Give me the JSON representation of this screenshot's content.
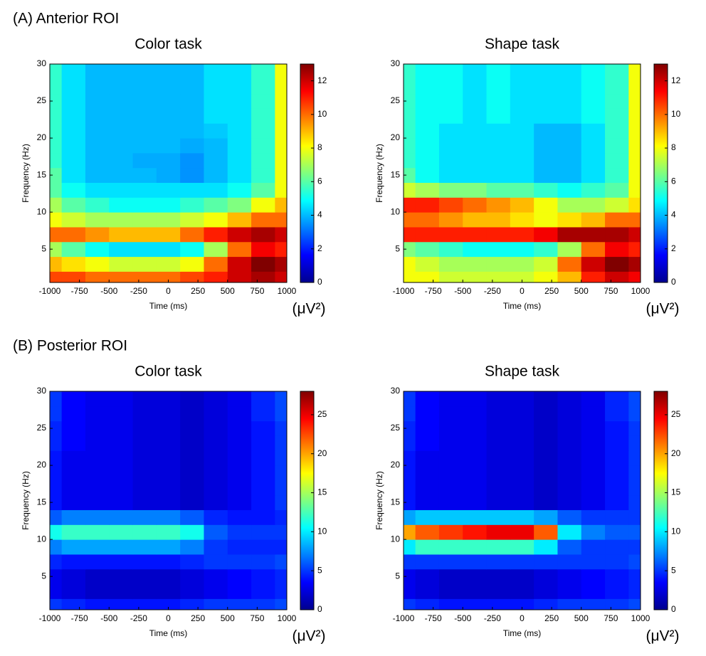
{
  "panel_labels": [
    "(A) Anterior ROI",
    "(B) Posterior ROI"
  ],
  "chart_data": [
    {
      "type": "heatmap",
      "title": "Color task",
      "xlabel": "Time (ms)",
      "ylabel": "Frequency (Hz)",
      "colorbar_label": "(μV²)",
      "colormap": "jet",
      "x": [
        -1000,
        -800,
        -600,
        -400,
        -200,
        0,
        200,
        400,
        600,
        800,
        1000
      ],
      "y": [
        1,
        3,
        5,
        7,
        9,
        11,
        13,
        15,
        17,
        19,
        21,
        23,
        25,
        27,
        29
      ],
      "values": [
        [
          10.5,
          10.5,
          10,
          10,
          10,
          10,
          10.5,
          11,
          12,
          12.5,
          12
        ],
        [
          9,
          8.5,
          8,
          7.5,
          7.5,
          7.5,
          8,
          10,
          12,
          13,
          12.5
        ],
        [
          7,
          6,
          5,
          4.5,
          4.5,
          4.5,
          5,
          7,
          10,
          11.5,
          11
        ],
        [
          10,
          10,
          9.5,
          9,
          9,
          9,
          10,
          11,
          12,
          12.5,
          12
        ],
        [
          8,
          7.5,
          7,
          7,
          7,
          7,
          7.5,
          8,
          9,
          10,
          10
        ],
        [
          7,
          6,
          5.5,
          5,
          5,
          5,
          5.5,
          6,
          6.5,
          8,
          9
        ],
        [
          6,
          5,
          4.5,
          4.5,
          4.5,
          4.5,
          4.5,
          4.5,
          5,
          6,
          8
        ],
        [
          6,
          4.5,
          4,
          4,
          4,
          3.8,
          3.5,
          4,
          4.5,
          5.5,
          8
        ],
        [
          5.5,
          4.5,
          4,
          4,
          3.8,
          3.8,
          3.5,
          4,
          4.5,
          5.5,
          8
        ],
        [
          5.5,
          4.5,
          4,
          4,
          4,
          4,
          3.8,
          4,
          4.5,
          5.5,
          8
        ],
        [
          5.5,
          4.5,
          4,
          4,
          4,
          4,
          4,
          4.2,
          4.5,
          5.5,
          8
        ],
        [
          5.5,
          4.5,
          4,
          4,
          4,
          4,
          4,
          4.5,
          4.5,
          5.5,
          8
        ],
        [
          5.5,
          4.5,
          4,
          4,
          4,
          4,
          4,
          4.5,
          4.5,
          5.5,
          8
        ],
        [
          5.5,
          4.5,
          4,
          4,
          4,
          4,
          4,
          4.5,
          4.5,
          5.5,
          8
        ],
        [
          5.5,
          4.5,
          4,
          4,
          4,
          4,
          4,
          4.5,
          4.5,
          5.5,
          8
        ]
      ],
      "xlim": [
        -1000,
        1000
      ],
      "ylim": [
        0.5,
        30
      ],
      "xticks": [
        -1000,
        -750,
        -500,
        -250,
        0,
        250,
        500,
        750,
        1000
      ],
      "yticks": [
        5,
        10,
        15,
        20,
        25,
        30
      ],
      "clim": [
        0,
        13
      ],
      "cticks": [
        0,
        2,
        4,
        6,
        8,
        10,
        12
      ]
    },
    {
      "type": "heatmap",
      "title": "Shape task",
      "xlabel": "Time (ms)",
      "ylabel": "Frequency (Hz)",
      "colorbar_label": "(μV²)",
      "colormap": "jet",
      "x": [
        -1000,
        -800,
        -600,
        -400,
        -200,
        0,
        200,
        400,
        600,
        800,
        1000
      ],
      "y": [
        1,
        3,
        5,
        7,
        9,
        11,
        13,
        15,
        17,
        19,
        21,
        23,
        25,
        27,
        29
      ],
      "values": [
        [
          8,
          8,
          7.5,
          7.5,
          7.5,
          7.5,
          8,
          9,
          11,
          12,
          11.5
        ],
        [
          8,
          7.5,
          7,
          7,
          7,
          7,
          7.5,
          10,
          12,
          13,
          12.5
        ],
        [
          6.5,
          6,
          5.5,
          5,
          5,
          5,
          5.5,
          7,
          10,
          11.5,
          11
        ],
        [
          11,
          11,
          11,
          11,
          11,
          11,
          11.5,
          12.5,
          12.5,
          12.5,
          12
        ],
        [
          10,
          10,
          9.5,
          9,
          9,
          8.5,
          8,
          8.5,
          9,
          10,
          10
        ],
        [
          11,
          11,
          10.5,
          10,
          9.5,
          9,
          8,
          7,
          7,
          7.5,
          8.5
        ],
        [
          7.5,
          7,
          6.5,
          6.5,
          6,
          6,
          5.5,
          5,
          5.5,
          6,
          8
        ],
        [
          6,
          5,
          4.5,
          4.5,
          4.5,
          4.5,
          4,
          4,
          4.5,
          5.5,
          8
        ],
        [
          5.5,
          5,
          4.5,
          4.5,
          4.5,
          4.5,
          4,
          4,
          4.5,
          5.5,
          8
        ],
        [
          5.5,
          5,
          4.5,
          4.5,
          4.5,
          4.5,
          4,
          4,
          4.5,
          5.5,
          8
        ],
        [
          5.5,
          5,
          4.5,
          4.5,
          4.5,
          4.5,
          4,
          4,
          4.5,
          5.5,
          8
        ],
        [
          5.5,
          5,
          5,
          4.5,
          5,
          4.5,
          4.5,
          4.5,
          5,
          5.5,
          8
        ],
        [
          5.5,
          5,
          5,
          4.5,
          5,
          4.5,
          4.5,
          4.5,
          5,
          5.5,
          8
        ],
        [
          5.5,
          5,
          5,
          4.5,
          5,
          4.5,
          4.5,
          4.5,
          5,
          5.5,
          8
        ],
        [
          5.5,
          5,
          5,
          4.5,
          5,
          4.5,
          4.5,
          4.5,
          5,
          5.5,
          8
        ]
      ],
      "xlim": [
        -1000,
        1000
      ],
      "ylim": [
        0.5,
        30
      ],
      "xticks": [
        -1000,
        -750,
        -500,
        -250,
        0,
        250,
        500,
        750,
        1000
      ],
      "yticks": [
        5,
        10,
        15,
        20,
        25,
        30
      ],
      "clim": [
        0,
        13
      ],
      "cticks": [
        0,
        2,
        4,
        6,
        8,
        10,
        12
      ]
    },
    {
      "type": "heatmap",
      "title": "Color task",
      "xlabel": "Time (ms)",
      "ylabel": "Frequency (Hz)",
      "colorbar_label": "(μV²)",
      "colormap": "jet",
      "x": [
        -1000,
        -800,
        -600,
        -400,
        -200,
        0,
        200,
        400,
        600,
        800,
        1000
      ],
      "y": [
        1,
        3,
        5,
        7,
        9,
        11,
        13,
        15,
        17,
        19,
        21,
        23,
        25,
        27,
        29
      ],
      "values": [
        [
          5,
          4.5,
          4,
          4,
          4,
          4,
          4.5,
          5,
          5,
          5,
          5.5
        ],
        [
          3,
          2.5,
          2,
          2,
          2,
          2,
          2.5,
          3,
          3.5,
          4,
          4.5
        ],
        [
          3,
          2.5,
          2,
          2,
          2,
          2,
          2.5,
          3,
          3.5,
          4,
          4.5
        ],
        [
          4.5,
          4,
          4,
          4,
          4,
          4,
          4.5,
          5,
          5,
          5,
          5.5
        ],
        [
          7,
          8,
          8,
          8,
          8,
          8,
          7,
          5,
          4.5,
          4.5,
          4.5
        ],
        [
          11,
          12,
          12,
          12,
          12,
          12,
          11,
          6,
          5,
          5,
          5
        ],
        [
          6,
          7,
          7,
          7,
          7,
          7,
          6,
          4.5,
          4,
          4,
          4.5
        ],
        [
          4,
          3,
          3,
          3,
          2.5,
          2.5,
          2,
          2.5,
          3,
          4,
          5
        ],
        [
          4,
          3,
          3,
          3,
          2.5,
          2.5,
          2,
          2.5,
          3,
          4,
          5
        ],
        [
          4,
          3,
          3,
          3,
          2.5,
          2.5,
          2,
          2.5,
          3,
          4,
          5
        ],
        [
          4,
          3,
          3,
          3,
          2.5,
          2.5,
          2,
          2.5,
          3,
          4,
          5
        ],
        [
          4.5,
          3.5,
          3,
          3,
          2.5,
          2.5,
          2,
          2.5,
          3,
          4,
          5
        ],
        [
          4.5,
          3.5,
          3,
          3,
          2.5,
          2.5,
          2,
          2.5,
          3,
          4,
          5
        ],
        [
          5,
          3.5,
          3,
          3,
          2.5,
          2.5,
          2,
          2.5,
          3,
          4.5,
          5.5
        ],
        [
          5,
          3.5,
          3,
          3,
          2.5,
          2.5,
          2,
          2.5,
          3,
          4.5,
          5.5
        ]
      ],
      "xlim": [
        -1000,
        1000
      ],
      "ylim": [
        0.5,
        30
      ],
      "xticks": [
        -1000,
        -750,
        -500,
        -250,
        0,
        250,
        500,
        750,
        1000
      ],
      "yticks": [
        5,
        10,
        15,
        20,
        25,
        30
      ],
      "clim": [
        0,
        28
      ],
      "cticks": [
        0,
        5,
        10,
        15,
        20,
        25
      ]
    },
    {
      "type": "heatmap",
      "title": "Shape task",
      "xlabel": "Time (ms)",
      "ylabel": "Frequency (Hz)",
      "colorbar_label": "(μV²)",
      "colormap": "jet",
      "x": [
        -1000,
        -800,
        -600,
        -400,
        -200,
        0,
        200,
        400,
        600,
        800,
        1000
      ],
      "y": [
        1,
        3,
        5,
        7,
        9,
        11,
        13,
        15,
        17,
        19,
        21,
        23,
        25,
        27,
        29
      ],
      "values": [
        [
          5,
          4.5,
          4,
          4,
          4,
          4,
          4.5,
          5,
          5,
          5,
          5.5
        ],
        [
          3,
          2.5,
          2,
          2,
          2,
          2,
          2.5,
          3,
          3.5,
          4,
          4.5
        ],
        [
          3,
          2.5,
          2,
          2,
          2,
          2,
          2.5,
          3,
          3.5,
          4,
          4.5
        ],
        [
          5,
          5,
          5,
          5,
          5,
          5,
          5,
          5,
          5,
          5,
          5.5
        ],
        [
          10,
          12,
          12,
          12,
          12,
          12,
          10,
          6,
          5,
          5,
          5
        ],
        [
          20,
          22,
          23,
          24,
          25,
          25,
          22,
          10,
          7,
          6,
          6
        ],
        [
          8,
          9,
          9,
          9,
          9,
          9,
          8,
          6,
          5,
          5,
          5
        ],
        [
          4,
          3,
          3,
          3,
          2.5,
          2.5,
          2,
          2.5,
          3,
          4,
          5
        ],
        [
          4,
          3,
          3,
          3,
          2.5,
          2.5,
          2,
          2.5,
          3,
          4,
          5
        ],
        [
          4,
          3,
          3,
          3,
          2.5,
          2.5,
          2,
          2.5,
          3,
          4,
          5
        ],
        [
          4,
          3,
          3,
          3,
          2.5,
          2.5,
          2,
          2.5,
          3,
          4,
          5
        ],
        [
          4.5,
          3.5,
          3,
          3,
          2.5,
          2.5,
          2,
          2.5,
          3,
          4,
          5
        ],
        [
          4.5,
          3.5,
          3,
          3,
          2.5,
          2.5,
          2,
          2.5,
          3,
          4,
          5
        ],
        [
          5,
          3.5,
          3,
          3,
          2.5,
          2.5,
          2,
          2.5,
          3,
          4.5,
          5.5
        ],
        [
          5,
          3.5,
          3,
          3,
          2.5,
          2.5,
          2,
          2.5,
          3,
          4.5,
          5.5
        ]
      ],
      "xlim": [
        -1000,
        1000
      ],
      "ylim": [
        0.5,
        30
      ],
      "xticks": [
        -1000,
        -750,
        -500,
        -250,
        0,
        250,
        500,
        750,
        1000
      ],
      "yticks": [
        5,
        10,
        15,
        20,
        25,
        30
      ],
      "clim": [
        0,
        28
      ],
      "cticks": [
        0,
        5,
        10,
        15,
        20,
        25
      ]
    }
  ]
}
